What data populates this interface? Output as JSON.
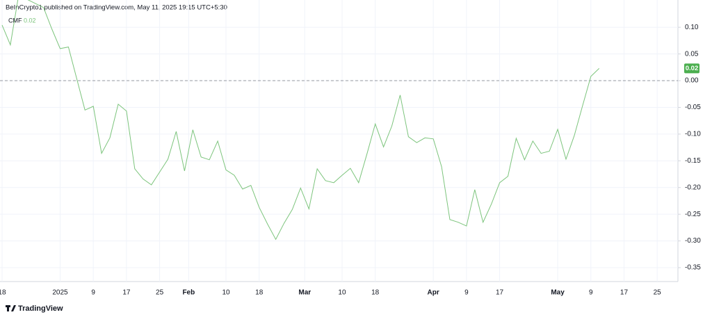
{
  "chart_data": {
    "type": "line",
    "header": "BeInCrypto1 published on TradingView.com, May 11, 2025 19:15 UTC+5:30",
    "brand": "TradingView",
    "series": [
      {
        "name": "CMF",
        "color": "#7cc47c",
        "legend_value_label": "0.02",
        "last_value_label": "0.02",
        "x": [
          0,
          2,
          4,
          10,
          12,
          14,
          16,
          20,
          22,
          24,
          26,
          28,
          30,
          32,
          34,
          36,
          38,
          40,
          42,
          44,
          46,
          48,
          50,
          52,
          54,
          56,
          58,
          60,
          62,
          64,
          66,
          68,
          70,
          72,
          74,
          76,
          78,
          80,
          82,
          84,
          86,
          88,
          90,
          92,
          94,
          96,
          98,
          100,
          102,
          104,
          106,
          108,
          110,
          112,
          114,
          116,
          118,
          120,
          122,
          124,
          126,
          128,
          130,
          132,
          134,
          136,
          138,
          140,
          142,
          144
        ],
        "values": [
          0.104,
          0.067,
          0.16,
          0.137,
          0.097,
          0.06,
          0.063,
          -0.055,
          -0.048,
          -0.136,
          -0.107,
          -0.044,
          -0.057,
          -0.165,
          -0.184,
          -0.195,
          -0.171,
          -0.147,
          -0.095,
          -0.169,
          -0.092,
          -0.143,
          -0.148,
          -0.113,
          -0.167,
          -0.177,
          -0.203,
          -0.196,
          -0.237,
          -0.268,
          -0.297,
          -0.267,
          -0.241,
          -0.201,
          -0.24,
          -0.165,
          -0.187,
          -0.191,
          -0.177,
          -0.164,
          -0.191,
          -0.137,
          -0.081,
          -0.124,
          -0.085,
          -0.027,
          -0.105,
          -0.116,
          -0.107,
          -0.109,
          -0.161,
          -0.26,
          -0.265,
          -0.272,
          -0.204,
          -0.265,
          -0.231,
          -0.191,
          -0.179,
          -0.108,
          -0.148,
          -0.113,
          -0.136,
          -0.132,
          -0.091,
          -0.147,
          -0.103,
          -0.047,
          0.008,
          0.023
        ]
      }
    ],
    "hline": 0,
    "xlim": [
      -0.5,
      163
    ],
    "xticks": [
      {
        "value": 0,
        "label": "18"
      },
      {
        "value": 14,
        "label": "2025"
      },
      {
        "value": 22,
        "label": "9"
      },
      {
        "value": 30,
        "label": "17"
      },
      {
        "value": 38,
        "label": "25"
      },
      {
        "value": 45,
        "label": "Feb"
      },
      {
        "value": 54,
        "label": "10"
      },
      {
        "value": 62,
        "label": "18"
      },
      {
        "value": 73,
        "label": "Mar"
      },
      {
        "value": 82,
        "label": "10"
      },
      {
        "value": 90,
        "label": "18"
      },
      {
        "value": 104,
        "label": "Apr"
      },
      {
        "value": 112,
        "label": "9"
      },
      {
        "value": 120,
        "label": "17"
      },
      {
        "value": 134,
        "label": "May"
      },
      {
        "value": 142,
        "label": "9"
      },
      {
        "value": 150,
        "label": "17"
      },
      {
        "value": 158,
        "label": "25"
      }
    ],
    "ylim": [
      -0.376,
      0.151
    ],
    "yticks": [
      {
        "value": 0.1,
        "label": "0.10"
      },
      0.05,
      {
        "value": 0,
        "label": "0.00"
      },
      -0.05,
      {
        "value": -0.1,
        "label": "-0.10"
      },
      -0.15,
      {
        "value": -0.2,
        "label": "-0.20"
      },
      -0.25,
      {
        "value": -0.3,
        "label": "-0.30"
      },
      -0.35
    ],
    "grid": true
  }
}
